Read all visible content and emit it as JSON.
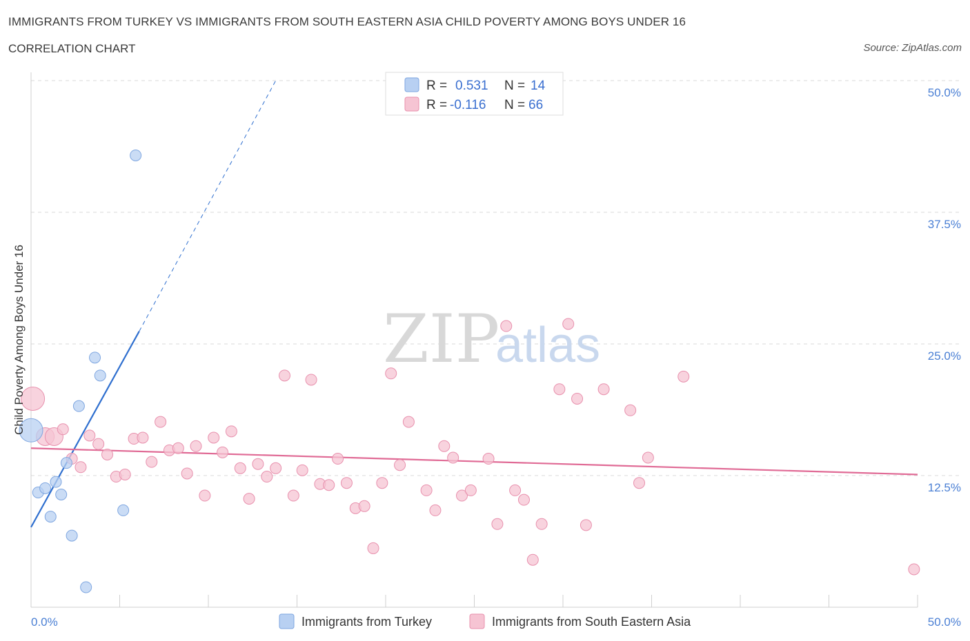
{
  "header": {
    "title": "IMMIGRANTS FROM TURKEY VS IMMIGRANTS FROM SOUTH EASTERN ASIA CHILD POVERTY AMONG BOYS UNDER 16",
    "subtitle": "CORRELATION CHART",
    "source": "Source: ZipAtlas.com"
  },
  "watermark": {
    "zip": "ZIP",
    "atlas": "atlas"
  },
  "colors": {
    "turkey_fill": "#b8d0f2",
    "turkey_stroke": "#7ea6e0",
    "turkey_line": "#2f6fcf",
    "sea_fill": "#f6c4d3",
    "sea_stroke": "#e890ad",
    "sea_line": "#e06a95",
    "grid": "#d8d8d8",
    "axis": "#cfcfcf",
    "tick_text": "#4a7fd4"
  },
  "legend": {
    "rows": [
      {
        "r_label": "R =",
        "r_value": "0.531",
        "n_label": "N =",
        "n_value": "14"
      },
      {
        "r_label": "R =",
        "r_value": "-0.116",
        "n_label": "N =",
        "n_value": "66"
      }
    ]
  },
  "chart_data": {
    "type": "scatter",
    "title": "IMMIGRANTS FROM TURKEY VS IMMIGRANTS FROM SOUTH EASTERN ASIA CHILD POVERTY AMONG BOYS UNDER 16",
    "xlabel": "",
    "ylabel": "Child Poverty Among Boys Under 16",
    "xlim": [
      0,
      50
    ],
    "ylim": [
      0,
      50
    ],
    "x_tick_labels": [
      "0.0%",
      "50.0%"
    ],
    "y_ticks": [
      12.5,
      25.0,
      37.5,
      50.0
    ],
    "y_tick_labels": [
      "12.5%",
      "25.0%",
      "37.5%",
      "50.0%"
    ],
    "grid": true,
    "legend_position": "bottom",
    "series": [
      {
        "name": "Immigrants from Turkey",
        "r": 0.531,
        "n": 14,
        "trend": {
          "x0": 0.0,
          "y0": 7.6,
          "x1": 6.1,
          "y1": 26.2,
          "dash_to_x": 13.8,
          "dash_to_y": 50.0
        },
        "points": [
          {
            "x": 0.0,
            "y": 16.8,
            "s": 3
          },
          {
            "x": 0.4,
            "y": 10.9,
            "s": 1
          },
          {
            "x": 0.8,
            "y": 11.3,
            "s": 1
          },
          {
            "x": 1.1,
            "y": 8.6,
            "s": 1
          },
          {
            "x": 1.4,
            "y": 11.9,
            "s": 1
          },
          {
            "x": 1.7,
            "y": 10.7,
            "s": 1
          },
          {
            "x": 2.0,
            "y": 13.7,
            "s": 1
          },
          {
            "x": 2.3,
            "y": 6.8,
            "s": 1
          },
          {
            "x": 2.7,
            "y": 19.1,
            "s": 1
          },
          {
            "x": 3.1,
            "y": 1.9,
            "s": 1
          },
          {
            "x": 3.6,
            "y": 23.7,
            "s": 1
          },
          {
            "x": 3.9,
            "y": 22.0,
            "s": 1
          },
          {
            "x": 5.2,
            "y": 9.2,
            "s": 1
          },
          {
            "x": 5.9,
            "y": 42.9,
            "s": 1
          }
        ]
      },
      {
        "name": "Immigrants from South Eastern Asia",
        "r": -0.116,
        "n": 66,
        "trend": {
          "x0": 0.0,
          "y0": 15.1,
          "x1": 50.0,
          "y1": 12.6
        },
        "points": [
          {
            "x": 0.1,
            "y": 19.8,
            "s": 3
          },
          {
            "x": 0.8,
            "y": 16.2,
            "s": 2
          },
          {
            "x": 1.3,
            "y": 16.2,
            "s": 2
          },
          {
            "x": 1.8,
            "y": 16.9,
            "s": 1
          },
          {
            "x": 2.3,
            "y": 14.1,
            "s": 1
          },
          {
            "x": 2.8,
            "y": 13.3,
            "s": 1
          },
          {
            "x": 3.3,
            "y": 16.3,
            "s": 1
          },
          {
            "x": 3.8,
            "y": 15.5,
            "s": 1
          },
          {
            "x": 4.3,
            "y": 14.5,
            "s": 1
          },
          {
            "x": 4.8,
            "y": 12.4,
            "s": 1
          },
          {
            "x": 5.3,
            "y": 12.6,
            "s": 1
          },
          {
            "x": 5.8,
            "y": 16.0,
            "s": 1
          },
          {
            "x": 6.3,
            "y": 16.1,
            "s": 1
          },
          {
            "x": 6.8,
            "y": 13.8,
            "s": 1
          },
          {
            "x": 7.3,
            "y": 17.6,
            "s": 1
          },
          {
            "x": 7.8,
            "y": 14.9,
            "s": 1
          },
          {
            "x": 8.3,
            "y": 15.1,
            "s": 1
          },
          {
            "x": 8.8,
            "y": 12.7,
            "s": 1
          },
          {
            "x": 9.3,
            "y": 15.3,
            "s": 1
          },
          {
            "x": 9.8,
            "y": 10.6,
            "s": 1
          },
          {
            "x": 10.3,
            "y": 16.1,
            "s": 1
          },
          {
            "x": 10.8,
            "y": 14.7,
            "s": 1
          },
          {
            "x": 11.3,
            "y": 16.7,
            "s": 1
          },
          {
            "x": 11.8,
            "y": 13.2,
            "s": 1
          },
          {
            "x": 12.3,
            "y": 10.3,
            "s": 1
          },
          {
            "x": 12.8,
            "y": 13.6,
            "s": 1
          },
          {
            "x": 13.3,
            "y": 12.4,
            "s": 1
          },
          {
            "x": 13.8,
            "y": 13.2,
            "s": 1
          },
          {
            "x": 14.3,
            "y": 22.0,
            "s": 1
          },
          {
            "x": 14.8,
            "y": 10.6,
            "s": 1
          },
          {
            "x": 15.3,
            "y": 13.0,
            "s": 1
          },
          {
            "x": 15.8,
            "y": 21.6,
            "s": 1
          },
          {
            "x": 16.3,
            "y": 11.7,
            "s": 1
          },
          {
            "x": 16.8,
            "y": 11.6,
            "s": 1
          },
          {
            "x": 17.3,
            "y": 14.1,
            "s": 1
          },
          {
            "x": 17.8,
            "y": 11.8,
            "s": 1
          },
          {
            "x": 18.3,
            "y": 9.4,
            "s": 1
          },
          {
            "x": 18.8,
            "y": 9.6,
            "s": 1
          },
          {
            "x": 19.3,
            "y": 5.6,
            "s": 1
          },
          {
            "x": 19.8,
            "y": 11.8,
            "s": 1
          },
          {
            "x": 20.3,
            "y": 22.2,
            "s": 1
          },
          {
            "x": 20.8,
            "y": 13.5,
            "s": 1
          },
          {
            "x": 21.3,
            "y": 17.6,
            "s": 1
          },
          {
            "x": 22.3,
            "y": 11.1,
            "s": 1
          },
          {
            "x": 22.8,
            "y": 9.2,
            "s": 1
          },
          {
            "x": 23.3,
            "y": 15.3,
            "s": 1
          },
          {
            "x": 23.8,
            "y": 14.2,
            "s": 1
          },
          {
            "x": 24.3,
            "y": 10.6,
            "s": 1
          },
          {
            "x": 24.8,
            "y": 11.1,
            "s": 1
          },
          {
            "x": 25.8,
            "y": 14.1,
            "s": 1
          },
          {
            "x": 26.3,
            "y": 7.9,
            "s": 1
          },
          {
            "x": 26.8,
            "y": 26.7,
            "s": 1
          },
          {
            "x": 27.3,
            "y": 11.1,
            "s": 1
          },
          {
            "x": 27.8,
            "y": 10.2,
            "s": 1
          },
          {
            "x": 28.3,
            "y": 4.5,
            "s": 1
          },
          {
            "x": 28.8,
            "y": 7.9,
            "s": 1
          },
          {
            "x": 29.8,
            "y": 20.7,
            "s": 1
          },
          {
            "x": 30.3,
            "y": 26.9,
            "s": 1
          },
          {
            "x": 30.8,
            "y": 19.8,
            "s": 1
          },
          {
            "x": 31.3,
            "y": 7.8,
            "s": 1
          },
          {
            "x": 32.3,
            "y": 20.7,
            "s": 1
          },
          {
            "x": 33.8,
            "y": 18.7,
            "s": 1
          },
          {
            "x": 34.3,
            "y": 11.8,
            "s": 1
          },
          {
            "x": 34.8,
            "y": 14.2,
            "s": 1
          },
          {
            "x": 36.8,
            "y": 21.9,
            "s": 1
          },
          {
            "x": 49.8,
            "y": 3.6,
            "s": 1
          }
        ]
      }
    ]
  }
}
